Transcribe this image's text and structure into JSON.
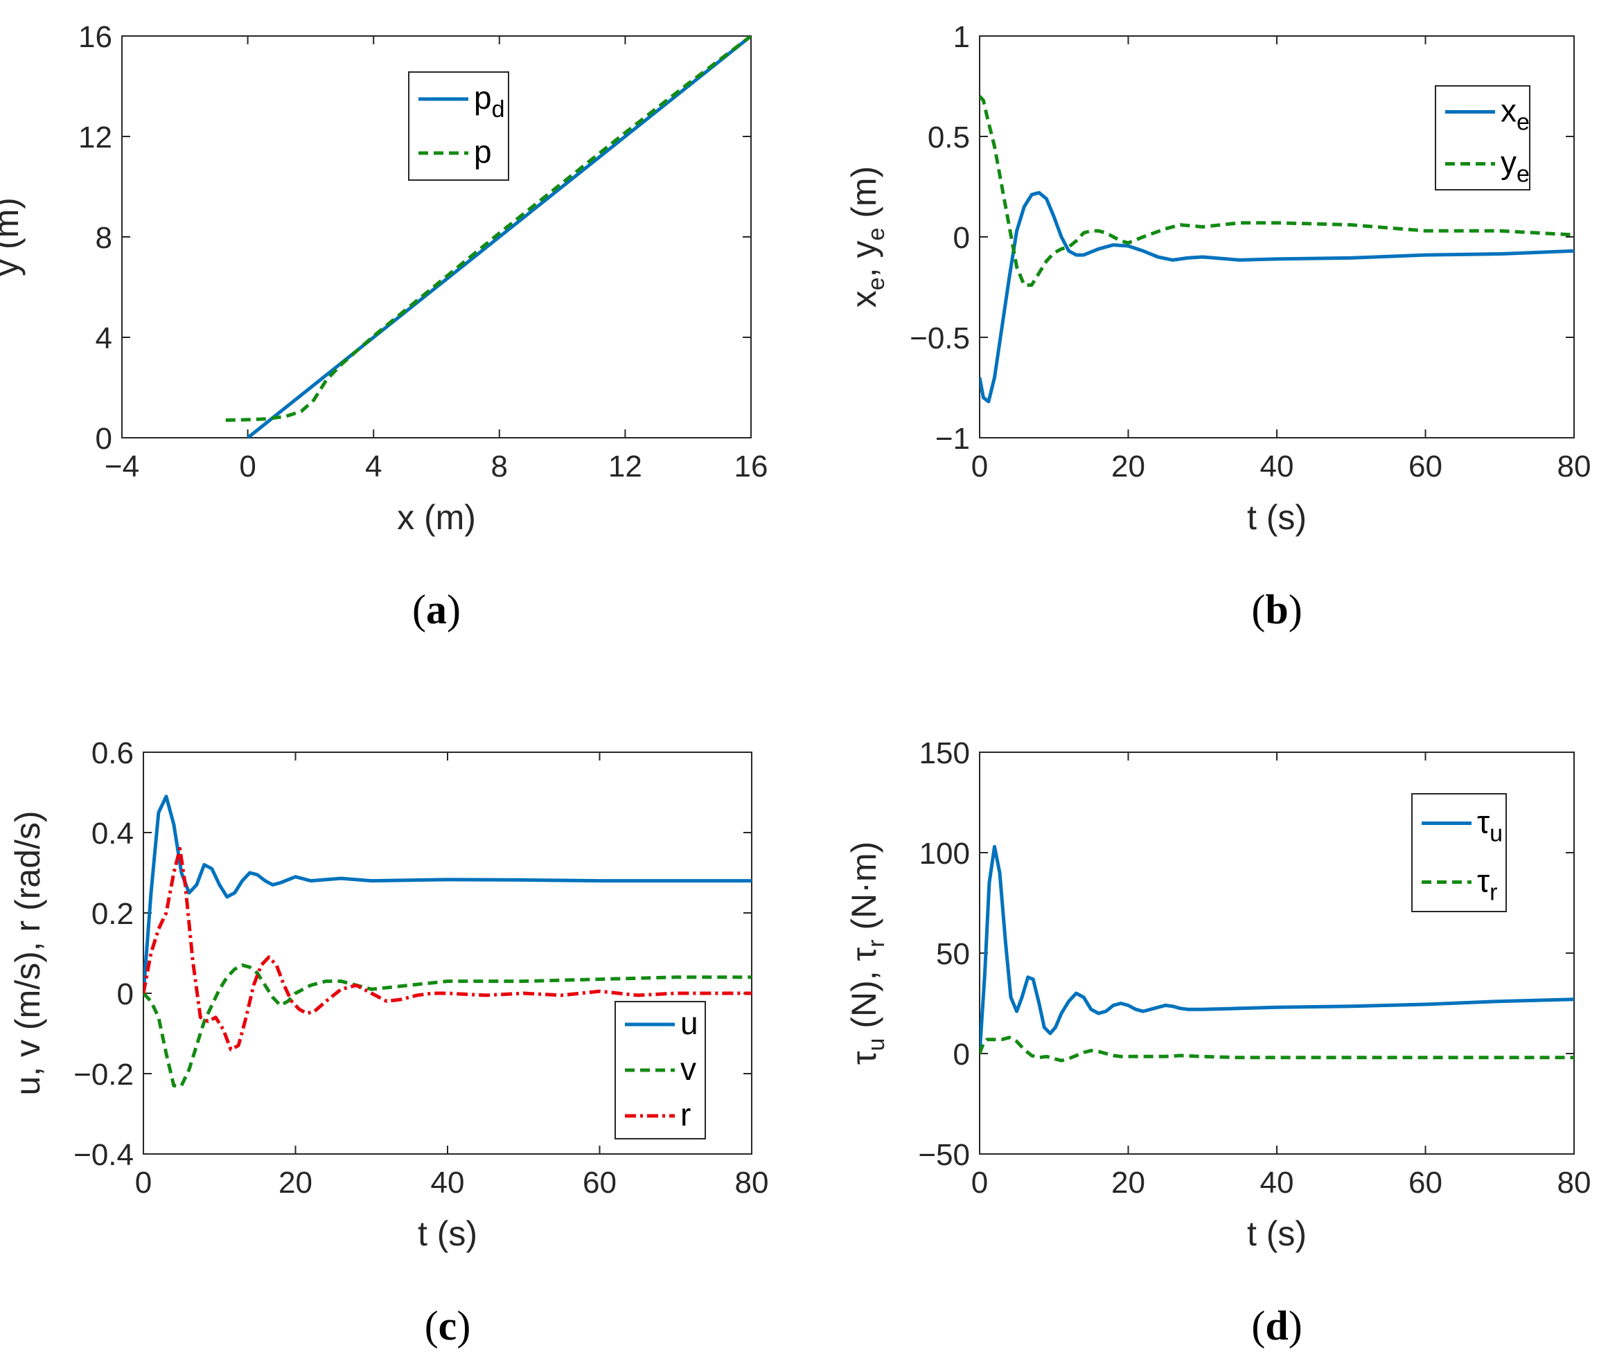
{
  "chart_data": [
    {
      "id": "a",
      "type": "line",
      "subfigure_label": "(a)",
      "subfigure_letter": "a",
      "xlabel": "x (m)",
      "ylabel": "y (m)",
      "xlim": [
        -4,
        16
      ],
      "ylim": [
        0,
        16
      ],
      "xticks": [
        -4,
        0,
        4,
        8,
        12,
        16
      ],
      "yticks": [
        0,
        4,
        8,
        12,
        16
      ],
      "xtick_labels": [
        "−4",
        "0",
        "4",
        "8",
        "12",
        "16"
      ],
      "ytick_labels": [
        "0",
        "4",
        "8",
        "12",
        "16"
      ],
      "legend": {
        "location": "top-center"
      },
      "series": [
        {
          "name": "p",
          "subscript": "d",
          "color": "#0072BD",
          "dash": "solid",
          "x": [
            0,
            16
          ],
          "y": [
            0,
            16
          ]
        },
        {
          "name": "p",
          "subscript": "",
          "color": "#138A13",
          "dash": "dashed",
          "x": [
            -0.7,
            0,
            0.6,
            1.2,
            1.7,
            2.1,
            2.5,
            3,
            4,
            6,
            8,
            10,
            12,
            14,
            16
          ],
          "y": [
            0.7,
            0.72,
            0.75,
            0.85,
            1.05,
            1.5,
            2.3,
            2.95,
            4.05,
            6.1,
            8.15,
            10.15,
            12.15,
            14.1,
            16
          ]
        }
      ]
    },
    {
      "id": "b",
      "type": "line",
      "subfigure_label": "(b)",
      "subfigure_letter": "b",
      "xlabel": "t (s)",
      "ylabel": "x",
      "ylabel_parts": [
        "x",
        "e",
        ", y",
        "e",
        " (m)"
      ],
      "xlim": [
        0,
        80
      ],
      "ylim": [
        -1,
        1
      ],
      "xticks": [
        0,
        20,
        40,
        60,
        80
      ],
      "yticks": [
        -1,
        -0.5,
        0,
        0.5,
        1
      ],
      "xtick_labels": [
        "0",
        "20",
        "40",
        "60",
        "80"
      ],
      "ytick_labels": [
        "−1",
        "−0.5",
        "0",
        "0.5",
        "1"
      ],
      "legend": {
        "location": "top-right"
      },
      "series": [
        {
          "name": "x",
          "subscript": "e",
          "color": "#0072BD",
          "dash": "solid",
          "x": [
            0,
            0.5,
            1.2,
            2,
            3,
            4,
            5,
            6,
            7,
            8,
            9,
            10,
            11,
            12,
            13,
            14,
            16,
            18,
            20,
            22,
            24,
            26,
            28,
            30,
            35,
            40,
            50,
            60,
            70,
            80
          ],
          "y": [
            -0.7,
            -0.8,
            -0.82,
            -0.7,
            -0.45,
            -0.2,
            0.03,
            0.15,
            0.21,
            0.22,
            0.19,
            0.1,
            0.0,
            -0.07,
            -0.09,
            -0.09,
            -0.06,
            -0.04,
            -0.045,
            -0.07,
            -0.1,
            -0.115,
            -0.105,
            -0.1,
            -0.115,
            -0.11,
            -0.105,
            -0.09,
            -0.085,
            -0.07
          ]
        },
        {
          "name": "y",
          "subscript": "e",
          "color": "#138A13",
          "dash": "dashed",
          "x": [
            0,
            0.5,
            1,
            2,
            3,
            4,
            5,
            6,
            7,
            8,
            9,
            10,
            11,
            12,
            13,
            14,
            15,
            16,
            17,
            18,
            19,
            20,
            22,
            25,
            27,
            30,
            35,
            40,
            50,
            60,
            70,
            80
          ],
          "y": [
            0.7,
            0.68,
            0.6,
            0.45,
            0.25,
            0.05,
            -0.15,
            -0.24,
            -0.24,
            -0.18,
            -0.12,
            -0.08,
            -0.06,
            -0.05,
            -0.02,
            0.02,
            0.03,
            0.03,
            0.02,
            0.0,
            -0.02,
            -0.03,
            0.0,
            0.04,
            0.06,
            0.05,
            0.07,
            0.07,
            0.06,
            0.03,
            0.03,
            0.01
          ]
        }
      ]
    },
    {
      "id": "c",
      "type": "line",
      "subfigure_label": "(c)",
      "subfigure_letter": "c",
      "xlabel": "t (s)",
      "ylabel": "u, v (m/s), r (rad/s)",
      "xlim": [
        0,
        80
      ],
      "ylim": [
        -0.4,
        0.6
      ],
      "xticks": [
        0,
        20,
        40,
        60,
        80
      ],
      "yticks": [
        -0.4,
        -0.2,
        0,
        0.2,
        0.4,
        0.6
      ],
      "xtick_labels": [
        "0",
        "20",
        "40",
        "60",
        "80"
      ],
      "ytick_labels": [
        "−0.4",
        "−0.2",
        "0",
        "0.2",
        "0.4",
        "0.6"
      ],
      "legend": {
        "location": "bottom-right"
      },
      "series": [
        {
          "name": "u",
          "subscript": "",
          "color": "#0072BD",
          "dash": "solid",
          "x": [
            0,
            1,
            2,
            3,
            4,
            5,
            6,
            7,
            8,
            9,
            10,
            11,
            12,
            13,
            14,
            15,
            16,
            17,
            18,
            20,
            22,
            24,
            26,
            28,
            30,
            40,
            50,
            60,
            70,
            80
          ],
          "y": [
            0,
            0.25,
            0.45,
            0.49,
            0.42,
            0.3,
            0.25,
            0.27,
            0.32,
            0.31,
            0.27,
            0.24,
            0.25,
            0.28,
            0.3,
            0.295,
            0.28,
            0.27,
            0.275,
            0.29,
            0.28,
            0.283,
            0.286,
            0.283,
            0.28,
            0.283,
            0.282,
            0.28,
            0.28,
            0.28
          ]
        },
        {
          "name": "v",
          "subscript": "",
          "color": "#138A13",
          "dash": "dashed",
          "x": [
            0,
            1,
            2,
            3,
            4,
            5,
            6,
            7,
            8,
            9,
            10,
            11,
            12,
            13,
            14,
            15,
            16,
            17,
            18,
            19,
            20,
            22,
            24,
            26,
            28,
            30,
            35,
            40,
            50,
            60,
            70,
            80
          ],
          "y": [
            0,
            -0.02,
            -0.06,
            -0.15,
            -0.23,
            -0.23,
            -0.19,
            -0.13,
            -0.07,
            -0.03,
            0.01,
            0.04,
            0.06,
            0.07,
            0.065,
            0.05,
            0.02,
            -0.01,
            -0.03,
            -0.02,
            0.0,
            0.02,
            0.03,
            0.03,
            0.02,
            0.01,
            0.02,
            0.03,
            0.03,
            0.035,
            0.04,
            0.04
          ]
        },
        {
          "name": "r",
          "subscript": "",
          "color": "#E8000B",
          "dash": "dashdot",
          "x": [
            0,
            1,
            2,
            3,
            4,
            4.8,
            5.5,
            6.5,
            7.5,
            8.5,
            9.5,
            10.5,
            11.5,
            12.5,
            13.5,
            14.5,
            15.5,
            16.5,
            17.5,
            18.5,
            19.5,
            20.5,
            21.5,
            22.5,
            24,
            26,
            28,
            30,
            32,
            34,
            36,
            38,
            40,
            45,
            50,
            55,
            60,
            65,
            70,
            75,
            80
          ],
          "y": [
            0,
            0.1,
            0.16,
            0.2,
            0.3,
            0.36,
            0.27,
            0.08,
            -0.06,
            -0.07,
            -0.06,
            -0.09,
            -0.14,
            -0.13,
            -0.06,
            0.02,
            0.07,
            0.09,
            0.07,
            0.02,
            -0.02,
            -0.04,
            -0.05,
            -0.045,
            -0.02,
            0.01,
            0.02,
            0.0,
            -0.02,
            -0.015,
            -0.005,
            0.0,
            0.0,
            -0.005,
            0.0,
            -0.005,
            0.005,
            -0.005,
            0.0,
            0.0,
            0.0
          ]
        }
      ]
    },
    {
      "id": "d",
      "type": "line",
      "subfigure_label": "(d)",
      "subfigure_letter": "d",
      "xlabel": "t (s)",
      "ylabel": "τ",
      "ylabel_parts": [
        "τ",
        "u",
        " (N), τ",
        "r",
        " (N·m)"
      ],
      "xlim": [
        0,
        80
      ],
      "ylim": [
        -50,
        150
      ],
      "xticks": [
        0,
        20,
        40,
        60,
        80
      ],
      "yticks": [
        -50,
        0,
        50,
        100,
        150
      ],
      "xtick_labels": [
        "0",
        "20",
        "40",
        "60",
        "80"
      ],
      "ytick_labels": [
        "−50",
        "0",
        "50",
        "100",
        "150"
      ],
      "legend": {
        "location": "top-right"
      },
      "series": [
        {
          "name": "τ",
          "subscript": "u",
          "color": "#0072BD",
          "dash": "solid",
          "x": [
            0,
            0.7,
            1.3,
            2,
            2.7,
            3.5,
            4.2,
            5,
            5.7,
            6.5,
            7.2,
            8,
            8.7,
            9.5,
            10.2,
            11,
            12,
            13,
            14,
            15,
            16,
            17,
            18,
            19,
            20,
            21,
            22,
            23,
            24,
            25,
            26,
            27,
            28,
            30,
            35,
            40,
            50,
            60,
            70,
            80
          ],
          "y": [
            0,
            40,
            85,
            103,
            90,
            55,
            28,
            21,
            28,
            38,
            37,
            25,
            13,
            10,
            13,
            20,
            26,
            30,
            28,
            22,
            20,
            21,
            24,
            25,
            24,
            22,
            21,
            22,
            23,
            24,
            23.5,
            22.5,
            22,
            22,
            22.5,
            23,
            23.5,
            24.5,
            26,
            27
          ]
        },
        {
          "name": "τ",
          "subscript": "r",
          "color": "#138A13",
          "dash": "dashed",
          "x": [
            0,
            0.5,
            1,
            2,
            3,
            4,
            5,
            6,
            7,
            8,
            9,
            10,
            11,
            12,
            13,
            14,
            15,
            16,
            17,
            18,
            19,
            20,
            22,
            25,
            27,
            30,
            35,
            40,
            50,
            60,
            70,
            80
          ],
          "y": [
            0,
            5,
            7,
            7,
            7,
            8,
            6,
            2,
            -1,
            -2,
            -1.5,
            -2.5,
            -3.5,
            -2.5,
            -1,
            0.5,
            1.5,
            1,
            0,
            -1,
            -1.5,
            -1.5,
            -1.5,
            -1.5,
            -1,
            -1.5,
            -2,
            -2,
            -2,
            -2,
            -2,
            -2
          ]
        }
      ]
    }
  ]
}
